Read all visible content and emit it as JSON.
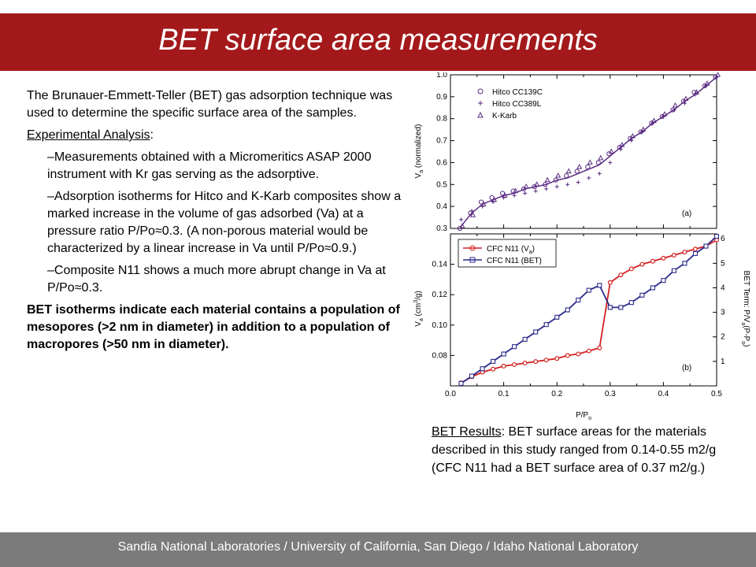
{
  "title": "BET surface area measurements",
  "left_text": {
    "intro": "The Brunauer-Emmett-Teller (BET) gas adsorption technique was used to determine the specific surface area of the samples.",
    "analysis_label": "Experimental Analysis",
    "analysis_colon": ":",
    "bullet1": "–Measurements obtained with a Micromeritics ASAP 2000 instrument with Kr gas serving as the adsorptive.",
    "bullet2": "–Adsorption isotherms for Hitco and K-Karb composites show a marked increase in the volume of gas adsorbed (Va) at a pressure ratio P/Po≈0.3.  (A non-porous material would be characterized by a linear increase in Va until P/Po≈0.9.)",
    "bullet3": "–Composite N11 shows a much more abrupt change in Va at P/Po≈0.3.",
    "conclusion": "BET isotherms indicate each material contains a population of mesopores (>2 nm in diameter) in addition to a population of macropores (>50 nm in diameter)."
  },
  "results": {
    "label": "BET Results",
    "text": ":  BET surface areas for the materials described in this study ranged from 0.14-0.55 m2/g (CFC N11 had a BET surface area of 0.37 m2/g.)"
  },
  "footer": "Sandia National Laboratories / University of California, San Diego / Idaho National Laboratory",
  "chart_data": [
    {
      "type": "scatter",
      "panel_label": "(a)",
      "ylabel": "V",
      "ylabel_sub": "a",
      "ylabel_rest": " (normalized)",
      "ylim": [
        0.3,
        1.0
      ],
      "xlim": [
        0.0,
        0.5
      ],
      "yticks": [
        "0.3",
        "0.4",
        "0.5",
        "0.6",
        "0.7",
        "0.8",
        "0.9",
        "1.0"
      ],
      "legend_position": "top-left",
      "colors": {
        "markers": "#5a2d82",
        "fit_line": "#5a2d82"
      },
      "series": [
        {
          "name": "Hitco CC139C",
          "marker": "circle",
          "x": [
            0.02,
            0.04,
            0.06,
            0.08,
            0.1,
            0.12,
            0.14,
            0.16,
            0.18,
            0.2,
            0.22,
            0.24,
            0.26,
            0.28,
            0.3,
            0.32,
            0.34,
            0.36,
            0.38,
            0.4,
            0.42,
            0.44,
            0.46,
            0.48,
            0.5
          ],
          "y": [
            0.3,
            0.37,
            0.42,
            0.44,
            0.46,
            0.47,
            0.48,
            0.49,
            0.5,
            0.52,
            0.54,
            0.56,
            0.58,
            0.6,
            0.64,
            0.67,
            0.71,
            0.74,
            0.78,
            0.81,
            0.84,
            0.88,
            0.92,
            0.95,
            0.99
          ]
        },
        {
          "name": "Hitco CC389L",
          "marker": "plus",
          "x": [
            0.02,
            0.04,
            0.06,
            0.08,
            0.1,
            0.12,
            0.14,
            0.16,
            0.18,
            0.2,
            0.22,
            0.24,
            0.26,
            0.28,
            0.3,
            0.32,
            0.34,
            0.36,
            0.38,
            0.4,
            0.42,
            0.44,
            0.46,
            0.48,
            0.5
          ],
          "y": [
            0.34,
            0.38,
            0.4,
            0.42,
            0.44,
            0.45,
            0.46,
            0.47,
            0.48,
            0.49,
            0.5,
            0.51,
            0.53,
            0.55,
            0.6,
            0.66,
            0.7,
            0.74,
            0.78,
            0.81,
            0.84,
            0.87,
            0.91,
            0.95,
            0.99
          ]
        },
        {
          "name": "K-Karb",
          "marker": "triangle",
          "x": [
            0.02,
            0.04,
            0.06,
            0.08,
            0.1,
            0.12,
            0.14,
            0.16,
            0.18,
            0.2,
            0.22,
            0.24,
            0.26,
            0.28,
            0.3,
            0.32,
            0.34,
            0.36,
            0.38,
            0.4,
            0.42,
            0.44,
            0.46,
            0.48,
            0.5
          ],
          "y": [
            0.31,
            0.36,
            0.41,
            0.43,
            0.45,
            0.47,
            0.49,
            0.5,
            0.52,
            0.54,
            0.56,
            0.58,
            0.6,
            0.62,
            0.65,
            0.68,
            0.72,
            0.75,
            0.79,
            0.82,
            0.86,
            0.89,
            0.92,
            0.96,
            1.0
          ]
        }
      ],
      "fit_line": {
        "x": [
          0.02,
          0.04,
          0.06,
          0.08,
          0.1,
          0.12,
          0.14,
          0.16,
          0.18,
          0.2,
          0.22,
          0.24,
          0.26,
          0.28,
          0.3,
          0.32,
          0.34,
          0.36,
          0.38,
          0.4,
          0.42,
          0.44,
          0.46,
          0.48,
          0.5
        ],
        "y": [
          0.31,
          0.37,
          0.41,
          0.43,
          0.45,
          0.46,
          0.48,
          0.49,
          0.5,
          0.52,
          0.53,
          0.55,
          0.57,
          0.59,
          0.63,
          0.67,
          0.71,
          0.74,
          0.78,
          0.81,
          0.84,
          0.88,
          0.91,
          0.95,
          0.99
        ]
      }
    },
    {
      "type": "line",
      "panel_label": "(b)",
      "xlabel": "P/P",
      "xlabel_sub": "o",
      "ylabel": "V",
      "ylabel_sub": "a",
      "ylabel_rest": " (cm",
      "ylabel_sup": "3",
      "ylabel_end": "/g)",
      "y2label": "BET Term: P/V",
      "y2label_sub1": "a",
      "y2label_mid": "(P-P",
      "y2label_sub2": "o",
      "y2label_end": ")",
      "xlim": [
        0.0,
        0.5
      ],
      "ylim": [
        0.06,
        0.16
      ],
      "y2lim": [
        0,
        6.2
      ],
      "xticks": [
        "0.0",
        "0.1",
        "0.2",
        "0.3",
        "0.4",
        "0.5"
      ],
      "yticks": [
        "0.08",
        "0.10",
        "0.12",
        "0.14"
      ],
      "y2ticks": [
        "1",
        "2",
        "3",
        "4",
        "5",
        "6"
      ],
      "legend_position": "top-left",
      "series": [
        {
          "name_main": "CFC N11 (V",
          "name_sub": "a",
          "name_end": ")",
          "axis": "left",
          "color": "#d42020",
          "marker": "circle",
          "x": [
            0.02,
            0.04,
            0.06,
            0.08,
            0.1,
            0.12,
            0.14,
            0.16,
            0.18,
            0.2,
            0.22,
            0.24,
            0.26,
            0.28,
            0.3,
            0.32,
            0.34,
            0.36,
            0.38,
            0.4,
            0.42,
            0.44,
            0.46,
            0.48,
            0.5
          ],
          "y": [
            0.062,
            0.066,
            0.069,
            0.071,
            0.073,
            0.074,
            0.075,
            0.076,
            0.077,
            0.078,
            0.08,
            0.081,
            0.083,
            0.085,
            0.128,
            0.133,
            0.137,
            0.14,
            0.142,
            0.144,
            0.146,
            0.148,
            0.15,
            0.152,
            0.156
          ]
        },
        {
          "name_main": "CFC N11 (BET)",
          "axis": "right",
          "color": "#2a2a8a",
          "marker": "square",
          "x": [
            0.02,
            0.04,
            0.06,
            0.08,
            0.1,
            0.12,
            0.14,
            0.16,
            0.18,
            0.2,
            0.22,
            0.24,
            0.26,
            0.28,
            0.3,
            0.32,
            0.34,
            0.36,
            0.38,
            0.4,
            0.42,
            0.44,
            0.46,
            0.48,
            0.5
          ],
          "y": [
            0.1,
            0.4,
            0.7,
            1.0,
            1.3,
            1.6,
            1.9,
            2.2,
            2.5,
            2.8,
            3.1,
            3.5,
            3.9,
            4.1,
            3.2,
            3.2,
            3.4,
            3.7,
            4.0,
            4.3,
            4.7,
            5.0,
            5.4,
            5.7,
            6.1
          ]
        }
      ]
    }
  ]
}
